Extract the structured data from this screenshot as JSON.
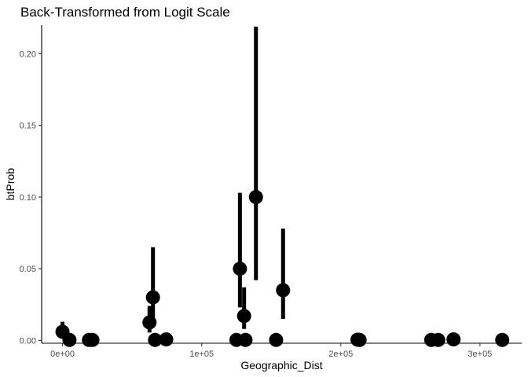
{
  "chart_data": {
    "type": "scatter",
    "title": "Back-Transformed from Logit Scale",
    "xlabel": "Geographic_Dist",
    "ylabel": "btProb",
    "xlim": [
      -15000,
      330000
    ],
    "ylim": [
      -0.002,
      0.22
    ],
    "x_ticks": [
      0,
      100000,
      200000,
      300000
    ],
    "x_tick_labels": [
      "0e+00",
      "1e+05",
      "2e+05",
      "3e+05"
    ],
    "y_ticks": [
      0.0,
      0.05,
      0.1,
      0.15,
      0.2
    ],
    "y_tick_labels": [
      "0.00",
      "0.05",
      "0.10",
      "0.15",
      "0.20"
    ],
    "grid": false,
    "legend": "none",
    "color": "#000000",
    "points": [
      {
        "x": 0,
        "y": 0.006,
        "ymin": 0.002,
        "ymax": 0.013
      },
      {
        "x": 5000,
        "y": 0.0003,
        "ymin": 0.0,
        "ymax": 0.001
      },
      {
        "x": 19000,
        "y": 0.0003,
        "ymin": 0.0,
        "ymax": 0.001
      },
      {
        "x": 21500,
        "y": 0.0003,
        "ymin": 0.0,
        "ymax": 0.001
      },
      {
        "x": 62500,
        "y": 0.0125,
        "ymin": 0.0055,
        "ymax": 0.024
      },
      {
        "x": 65000,
        "y": 0.03,
        "ymin": 0.013,
        "ymax": 0.065
      },
      {
        "x": 66500,
        "y": 0.0003,
        "ymin": 0.0,
        "ymax": 0.001
      },
      {
        "x": 74500,
        "y": 0.0007,
        "ymin": 0.0,
        "ymax": 0.002
      },
      {
        "x": 125000,
        "y": 0.0003,
        "ymin": 0.0,
        "ymax": 0.001
      },
      {
        "x": 127500,
        "y": 0.05,
        "ymin": 0.023,
        "ymax": 0.103
      },
      {
        "x": 130500,
        "y": 0.017,
        "ymin": 0.008,
        "ymax": 0.037
      },
      {
        "x": 131500,
        "y": 0.0003,
        "ymin": 0.0,
        "ymax": 0.001
      },
      {
        "x": 139000,
        "y": 0.1,
        "ymin": 0.042,
        "ymax": 0.219
      },
      {
        "x": 153500,
        "y": 0.0003,
        "ymin": 0.0,
        "ymax": 0.001
      },
      {
        "x": 158500,
        "y": 0.035,
        "ymin": 0.015,
        "ymax": 0.078
      },
      {
        "x": 212000,
        "y": 0.0005,
        "ymin": 0.0,
        "ymax": 0.0015
      },
      {
        "x": 213500,
        "y": 0.0003,
        "ymin": 0.0,
        "ymax": 0.001
      },
      {
        "x": 265000,
        "y": 0.0003,
        "ymin": 0.0,
        "ymax": 0.001
      },
      {
        "x": 270000,
        "y": 0.0003,
        "ymin": 0.0,
        "ymax": 0.001
      },
      {
        "x": 281000,
        "y": 0.0007,
        "ymin": 0.0,
        "ymax": 0.002
      },
      {
        "x": 316000,
        "y": 0.0003,
        "ymin": 0.0,
        "ymax": 0.001
      }
    ]
  }
}
